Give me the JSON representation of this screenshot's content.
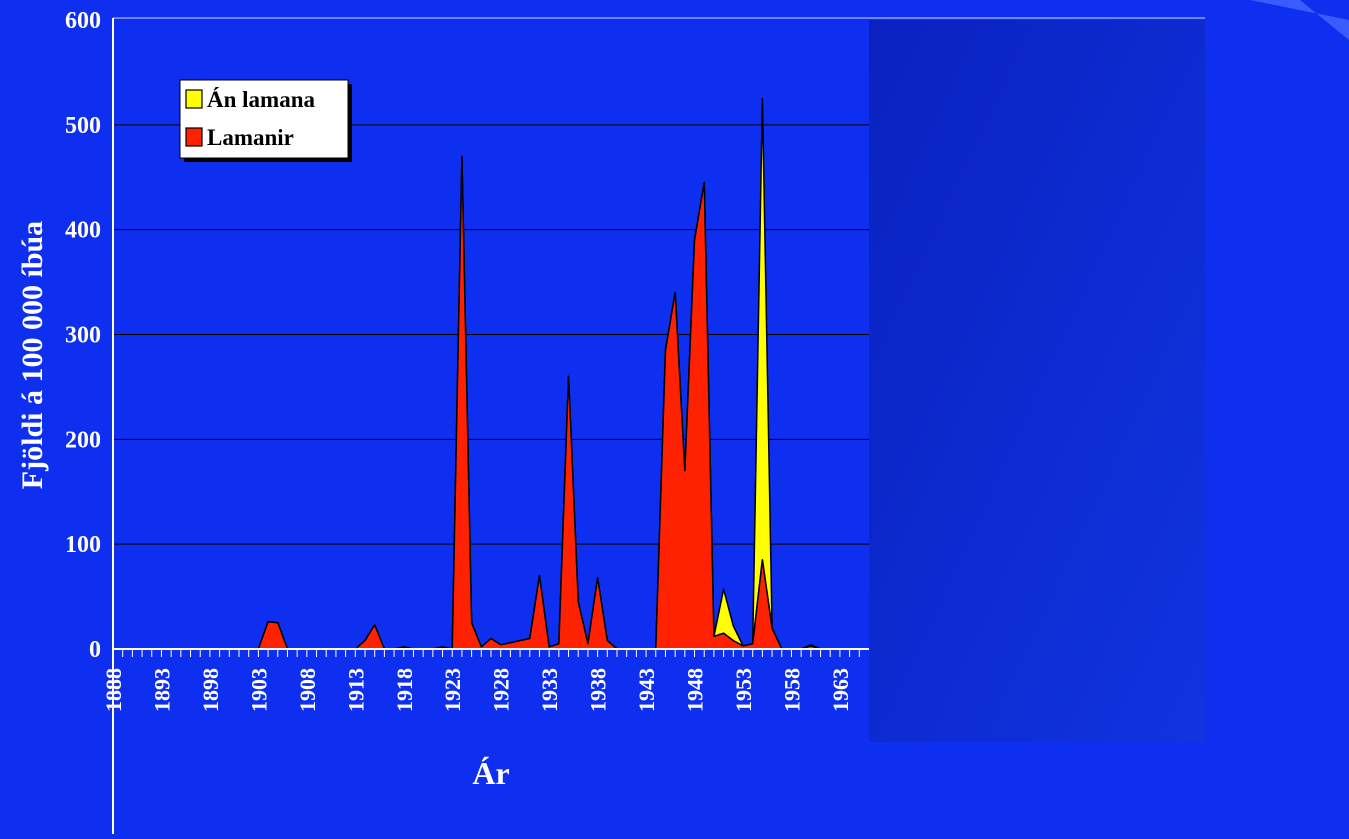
{
  "chart_data": {
    "type": "area",
    "title": "",
    "xlabel": "Ár",
    "ylabel": "Fjöldi á 100 000 íbúa",
    "ylim": [
      0,
      600
    ],
    "yticks": [
      "0",
      "100",
      "200",
      "300",
      "400",
      "500",
      "600"
    ],
    "xlim": [
      1888,
      1965
    ],
    "xticks": [
      "1888",
      "1893",
      "1898",
      "1903",
      "1908",
      "1913",
      "1918",
      "1923",
      "1928",
      "1933",
      "1938",
      "1943",
      "1948",
      "1953",
      "1958",
      "1963"
    ],
    "grid": true,
    "stacked": true,
    "legend": {
      "position": "top-left",
      "entries": [
        "Án lamana",
        "Lamanir"
      ]
    },
    "x": [
      1888,
      1889,
      1890,
      1891,
      1892,
      1893,
      1894,
      1895,
      1896,
      1897,
      1898,
      1899,
      1900,
      1901,
      1902,
      1903,
      1904,
      1905,
      1906,
      1907,
      1908,
      1909,
      1910,
      1911,
      1912,
      1913,
      1914,
      1915,
      1916,
      1917,
      1918,
      1919,
      1920,
      1921,
      1922,
      1923,
      1924,
      1925,
      1926,
      1927,
      1928,
      1929,
      1930,
      1931,
      1932,
      1933,
      1934,
      1935,
      1936,
      1937,
      1938,
      1939,
      1940,
      1941,
      1942,
      1943,
      1944,
      1945,
      1946,
      1947,
      1948,
      1949,
      1950,
      1951,
      1952,
      1953,
      1954,
      1955,
      1956,
      1957,
      1958,
      1959,
      1960,
      1961,
      1962,
      1963,
      1964,
      1965
    ],
    "series": [
      {
        "name": "Lamanir",
        "color": "#ff2200",
        "values": [
          0,
          0,
          0,
          0,
          0,
          0,
          0,
          0,
          0,
          0,
          0,
          0,
          0,
          0,
          0,
          0,
          26,
          25,
          0,
          0,
          0,
          0,
          0,
          0,
          0,
          0,
          8,
          23,
          0,
          0,
          2,
          0,
          0,
          0,
          2,
          0,
          470,
          25,
          2,
          10,
          4,
          6,
          8,
          10,
          70,
          2,
          5,
          260,
          45,
          5,
          68,
          8,
          0,
          0,
          0,
          0,
          0,
          285,
          340,
          170,
          390,
          445,
          12,
          15,
          8,
          3,
          5,
          85,
          20,
          0,
          0,
          0,
          3,
          0,
          0,
          0,
          0,
          0
        ]
      },
      {
        "name": "Án lamana",
        "color": "#ffff00",
        "values": [
          0,
          0,
          0,
          0,
          0,
          0,
          0,
          0,
          0,
          0,
          0,
          0,
          0,
          0,
          0,
          0,
          0,
          0,
          0,
          0,
          0,
          0,
          0,
          0,
          0,
          0,
          0,
          0,
          0,
          0,
          0,
          0,
          0,
          0,
          0,
          0,
          0,
          0,
          0,
          0,
          0,
          0,
          0,
          0,
          0,
          0,
          0,
          0,
          0,
          0,
          0,
          0,
          0,
          0,
          0,
          0,
          0,
          0,
          0,
          0,
          0,
          0,
          0,
          42,
          14,
          0,
          0,
          440,
          0,
          0,
          0,
          0,
          1,
          0,
          0,
          0,
          0,
          0
        ]
      }
    ]
  },
  "colors": {
    "background": "#0f2ff0",
    "plot_area": "#0f2ff0",
    "right_panel": "#0a22c8",
    "gridline": "#000000",
    "axis_text": "#ffffff"
  }
}
